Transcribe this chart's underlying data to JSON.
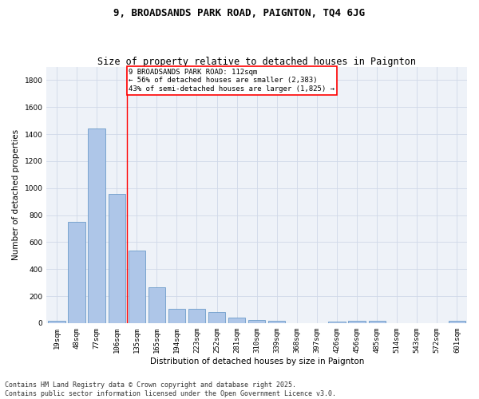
{
  "title1": "9, BROADSANDS PARK ROAD, PAIGNTON, TQ4 6JG",
  "title2": "Size of property relative to detached houses in Paignton",
  "xlabel": "Distribution of detached houses by size in Paignton",
  "ylabel": "Number of detached properties",
  "categories": [
    "19sqm",
    "48sqm",
    "77sqm",
    "106sqm",
    "135sqm",
    "165sqm",
    "194sqm",
    "223sqm",
    "252sqm",
    "281sqm",
    "310sqm",
    "339sqm",
    "368sqm",
    "397sqm",
    "426sqm",
    "456sqm",
    "485sqm",
    "514sqm",
    "543sqm",
    "572sqm",
    "601sqm"
  ],
  "values": [
    18,
    747,
    1440,
    955,
    535,
    265,
    108,
    108,
    82,
    42,
    25,
    18,
    0,
    0,
    12,
    18,
    18,
    0,
    0,
    0,
    18
  ],
  "bar_color": "#aec6e8",
  "bar_edge_color": "#5a8fc2",
  "vline_x": 3.5,
  "vline_color": "red",
  "annotation_text": "9 BROADSANDS PARK ROAD: 112sqm\n← 56% of detached houses are smaller (2,383)\n43% of semi-detached houses are larger (1,825) →",
  "annotation_box_color": "red",
  "ylim": [
    0,
    1900
  ],
  "yticks": [
    0,
    200,
    400,
    600,
    800,
    1000,
    1200,
    1400,
    1600,
    1800
  ],
  "grid_color": "#d0d8e8",
  "bg_color": "#eef2f8",
  "footer": "Contains HM Land Registry data © Crown copyright and database right 2025.\nContains public sector information licensed under the Open Government Licence v3.0.",
  "title_fontsize": 9,
  "subtitle_fontsize": 8.5,
  "axis_label_fontsize": 7.5,
  "tick_fontsize": 6.5,
  "annotation_fontsize": 6.5,
  "footer_fontsize": 6
}
